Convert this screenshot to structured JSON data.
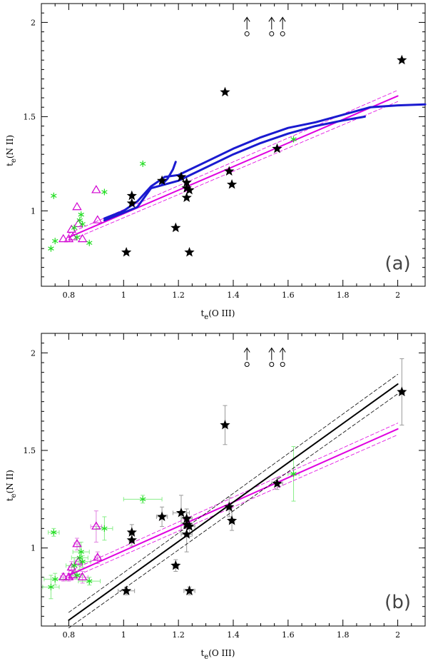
{
  "chart_data": [
    {
      "type": "scatter",
      "panel_label": "(a)",
      "xlabel": "t_e(O III)",
      "ylabel": "t_e(N II)",
      "xlim": [
        0.7,
        2.1
      ],
      "ylim": [
        0.6,
        2.1
      ],
      "x_ticks": [
        0.8,
        1,
        1.2,
        1.4,
        1.6,
        1.8,
        2
      ],
      "x_tick_labels": [
        "0.8",
        "1",
        "1.2",
        "1.4",
        "1.6",
        "1.8",
        "2"
      ],
      "y_ticks": [
        1,
        1.5,
        2
      ],
      "y_tick_labels": [
        "1",
        "1.5",
        "2"
      ],
      "grid": false,
      "error_bars": false,
      "colors": {
        "stars": "#000000",
        "triangles": "#d000d0",
        "asterisks": "#22dd22",
        "fit": "#e000e0",
        "models": "#1a1ad0",
        "axes": "#000000"
      },
      "series": [
        {
          "marker": "star",
          "points": [
            [
              1.01,
              0.78
            ],
            [
              1.03,
              1.08
            ],
            [
              1.03,
              1.04
            ],
            [
              1.14,
              1.16
            ],
            [
              1.19,
              0.91
            ],
            [
              1.21,
              1.18
            ],
            [
              1.23,
              1.07
            ],
            [
              1.23,
              1.15
            ],
            [
              1.23,
              1.12
            ],
            [
              1.24,
              1.11
            ],
            [
              1.24,
              0.78
            ],
            [
              1.37,
              1.63
            ],
            [
              1.385,
              1.21
            ],
            [
              1.395,
              1.14
            ],
            [
              1.56,
              1.33
            ],
            [
              2.015,
              1.8
            ]
          ]
        },
        {
          "marker": "triangle",
          "points": [
            [
              0.78,
              0.85
            ],
            [
              0.8,
              0.85
            ],
            [
              0.81,
              0.9
            ],
            [
              0.815,
              0.86
            ],
            [
              0.83,
              1.02
            ],
            [
              0.835,
              0.93
            ],
            [
              0.85,
              0.85
            ],
            [
              0.9,
              1.11
            ],
            [
              0.905,
              0.95
            ]
          ]
        },
        {
          "marker": "asterisk",
          "points": [
            [
              0.735,
              0.8
            ],
            [
              0.745,
              1.08
            ],
            [
              0.75,
              0.84
            ],
            [
              0.82,
              0.91
            ],
            [
              0.83,
              0.86
            ],
            [
              0.84,
              0.95
            ],
            [
              0.845,
              0.98
            ],
            [
              0.85,
              0.93
            ],
            [
              0.875,
              0.83
            ],
            [
              0.93,
              1.1
            ],
            [
              1.07,
              1.25
            ],
            [
              1.62,
              1.38
            ]
          ]
        },
        {
          "marker": "arrow-circle",
          "points": [
            [
              1.45,
              1.97
            ],
            [
              1.54,
              1.97
            ],
            [
              1.58,
              1.97
            ]
          ]
        }
      ],
      "lines": [
        {
          "style": "solid",
          "color": "#e000e0",
          "points": [
            [
              0.8,
              0.86
            ],
            [
              2.0,
              1.61
            ]
          ]
        },
        {
          "style": "dashed",
          "color": "#e000e0",
          "points": [
            [
              0.8,
              0.88
            ],
            [
              2.0,
              1.64
            ]
          ]
        },
        {
          "style": "dashed",
          "color": "#e000e0",
          "points": [
            [
              0.8,
              0.84
            ],
            [
              2.0,
              1.58
            ]
          ]
        },
        {
          "style": "solid",
          "color": "#1a1ad0",
          "points": [
            [
              0.93,
              0.96
            ],
            [
              1.0,
              1.0
            ],
            [
              1.05,
              1.05
            ],
            [
              1.1,
              1.13
            ],
            [
              1.15,
              1.18
            ],
            [
              1.2,
              1.19
            ],
            [
              1.3,
              1.26
            ],
            [
              1.4,
              1.33
            ],
            [
              1.5,
              1.39
            ],
            [
              1.6,
              1.44
            ],
            [
              1.7,
              1.47
            ],
            [
              1.8,
              1.51
            ],
            [
              1.9,
              1.55
            ],
            [
              2.0,
              1.56
            ],
            [
              2.1,
              1.565
            ]
          ]
        },
        {
          "style": "solid",
          "color": "#1a1ad0",
          "points": [
            [
              0.93,
              0.95
            ],
            [
              1.0,
              0.99
            ],
            [
              1.05,
              1.02
            ],
            [
              1.1,
              1.12
            ],
            [
              1.2,
              1.16
            ],
            [
              1.3,
              1.23
            ],
            [
              1.4,
              1.3
            ],
            [
              1.5,
              1.36
            ],
            [
              1.6,
              1.41
            ],
            [
              1.7,
              1.45
            ],
            [
              1.8,
              1.48
            ],
            [
              1.88,
              1.5
            ]
          ]
        },
        {
          "style": "solid",
          "color": "#1a1ad0",
          "points": [
            [
              1.14,
              1.14
            ],
            [
              1.16,
              1.17
            ],
            [
              1.18,
              1.22
            ],
            [
              1.19,
              1.26
            ]
          ]
        }
      ]
    },
    {
      "type": "scatter",
      "panel_label": "(b)",
      "xlabel": "t_e(O III)",
      "ylabel": "t_e(N II)",
      "xlim": [
        0.7,
        2.1
      ],
      "ylim": [
        0.6,
        2.1
      ],
      "x_ticks": [
        0.8,
        1,
        1.2,
        1.4,
        1.6,
        1.8,
        2
      ],
      "x_tick_labels": [
        "0.8",
        "1",
        "1.2",
        "1.4",
        "1.6",
        "1.8",
        "2"
      ],
      "y_ticks": [
        1,
        1.5,
        2
      ],
      "y_tick_labels": [
        "1",
        "1.5",
        "2"
      ],
      "grid": false,
      "error_bars": true,
      "colors": {
        "stars": "#000000",
        "triangles": "#d000d0",
        "asterisks": "#22dd22",
        "fit": "#e000e0",
        "black_fit": "#000000",
        "errorbars": "#999999",
        "axes": "#000000"
      },
      "series": [
        {
          "marker": "star",
          "points": [
            [
              1.01,
              0.78
            ],
            [
              1.03,
              1.08
            ],
            [
              1.03,
              1.04
            ],
            [
              1.14,
              1.16
            ],
            [
              1.19,
              0.91
            ],
            [
              1.21,
              1.18
            ],
            [
              1.23,
              1.07
            ],
            [
              1.23,
              1.15
            ],
            [
              1.23,
              1.12
            ],
            [
              1.24,
              1.11
            ],
            [
              1.24,
              0.78
            ],
            [
              1.37,
              1.63
            ],
            [
              1.385,
              1.21
            ],
            [
              1.395,
              1.14
            ],
            [
              1.56,
              1.33
            ],
            [
              2.015,
              1.8
            ]
          ],
          "yerr": [
            0.02,
            0.04,
            0.03,
            0.05,
            0.03,
            0.09,
            0.09,
            0.05,
            0.06,
            0.05,
            0.02,
            0.1,
            0.05,
            0.05,
            0.03,
            0.17
          ],
          "xerr": [
            0.03,
            0.01,
            0.01,
            0.02,
            0.01,
            0.03,
            0.02,
            0.02,
            0.02,
            0.02,
            0.02,
            0.01,
            0.01,
            0.01,
            0.02,
            0.01
          ]
        },
        {
          "marker": "triangle",
          "points": [
            [
              0.78,
              0.85
            ],
            [
              0.8,
              0.85
            ],
            [
              0.81,
              0.9
            ],
            [
              0.815,
              0.86
            ],
            [
              0.83,
              1.02
            ],
            [
              0.835,
              0.93
            ],
            [
              0.85,
              0.85
            ],
            [
              0.9,
              1.11
            ],
            [
              0.905,
              0.95
            ]
          ],
          "yerr": [
            0.02,
            0.02,
            0.03,
            0.02,
            0.03,
            0.02,
            0.03,
            0.08,
            0.03
          ],
          "xerr": [
            0.01,
            0.01,
            0.01,
            0.01,
            0.01,
            0.01,
            0.02,
            0.02,
            0.01
          ]
        },
        {
          "marker": "asterisk",
          "points": [
            [
              0.735,
              0.8
            ],
            [
              0.745,
              1.08
            ],
            [
              0.75,
              0.84
            ],
            [
              0.82,
              0.91
            ],
            [
              0.83,
              0.86
            ],
            [
              0.84,
              0.95
            ],
            [
              0.845,
              0.98
            ],
            [
              0.85,
              0.93
            ],
            [
              0.875,
              0.83
            ],
            [
              0.93,
              1.1
            ],
            [
              1.07,
              1.25
            ],
            [
              1.62,
              1.38
            ]
          ],
          "yerr": [
            0.06,
            0.02,
            0.03,
            0.04,
            0.02,
            0.06,
            0.05,
            0.03,
            0.02,
            0.06,
            0.02,
            0.14
          ],
          "xerr": [
            0.03,
            0.02,
            0.04,
            0.03,
            0.02,
            0.03,
            0.03,
            0.03,
            0.04,
            0.03,
            0.07,
            0.02
          ]
        },
        {
          "marker": "arrow-circle",
          "points": [
            [
              1.45,
              1.97
            ],
            [
              1.54,
              1.97
            ],
            [
              1.58,
              1.97
            ]
          ]
        }
      ],
      "lines": [
        {
          "style": "solid",
          "color": "#e000e0",
          "points": [
            [
              0.8,
              0.86
            ],
            [
              2.0,
              1.61
            ]
          ]
        },
        {
          "style": "dashed",
          "color": "#e000e0",
          "points": [
            [
              0.8,
              0.88
            ],
            [
              2.0,
              1.64
            ]
          ]
        },
        {
          "style": "dashed",
          "color": "#e000e0",
          "points": [
            [
              0.8,
              0.84
            ],
            [
              2.0,
              1.58
            ]
          ]
        },
        {
          "style": "solid",
          "color": "#000000",
          "points": [
            [
              0.8,
              0.63
            ],
            [
              2.0,
              1.84
            ]
          ]
        },
        {
          "style": "dashed",
          "color": "#000000",
          "points": [
            [
              0.8,
              0.67
            ],
            [
              2.0,
              1.89
            ]
          ]
        },
        {
          "style": "dashed",
          "color": "#000000",
          "points": [
            [
              0.8,
              0.59
            ],
            [
              2.0,
              1.79
            ]
          ]
        }
      ]
    }
  ]
}
